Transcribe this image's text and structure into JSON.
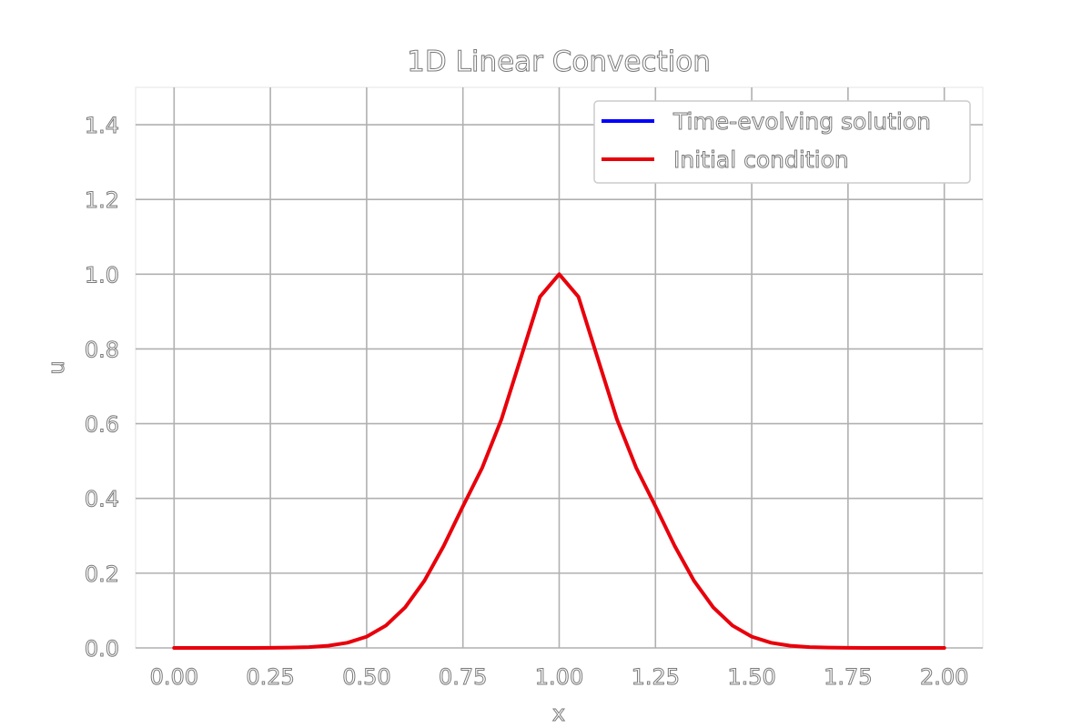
{
  "chart_data": {
    "type": "line",
    "title": "1D Linear Convection",
    "xlabel": "x",
    "ylabel": "u",
    "xlim": [
      -0.1,
      2.1
    ],
    "ylim": [
      0.0,
      1.5
    ],
    "xticks": [
      "0.00",
      "0.25",
      "0.50",
      "0.75",
      "1.00",
      "1.25",
      "1.50",
      "1.75",
      "2.00"
    ],
    "yticks": [
      "0.0",
      "0.2",
      "0.4",
      "0.6",
      "0.8",
      "1.0",
      "1.2",
      "1.4"
    ],
    "grid": true,
    "legend_position": "top-right",
    "series": [
      {
        "name": "Time-evolving solution",
        "color": "#0000ff",
        "x": [],
        "y": []
      },
      {
        "name": "Initial condition",
        "color": "#e8000b",
        "x": [
          0.0,
          0.05,
          0.1,
          0.15,
          0.2,
          0.25,
          0.3,
          0.35,
          0.4,
          0.45,
          0.5,
          0.55,
          0.6,
          0.65,
          0.7,
          0.75,
          0.8,
          0.85,
          0.9,
          0.95,
          1.0,
          1.05,
          1.1,
          1.15,
          1.2,
          1.25,
          1.3,
          1.35,
          1.4,
          1.45,
          1.5,
          1.55,
          1.6,
          1.65,
          1.7,
          1.75,
          1.8,
          1.85,
          1.9,
          1.95,
          2.0
        ],
        "y": [
          0.0,
          0.0,
          0.0,
          0.0,
          0.0001,
          0.0003,
          0.0008,
          0.0022,
          0.0058,
          0.0139,
          0.0302,
          0.0598,
          0.1084,
          0.1797,
          0.2727,
          0.3789,
          0.4819,
          0.6115,
          0.7749,
          0.9394,
          1.0,
          0.9394,
          0.7749,
          0.6115,
          0.4819,
          0.3789,
          0.2727,
          0.1797,
          0.1084,
          0.0598,
          0.0302,
          0.0139,
          0.0058,
          0.0022,
          0.0008,
          0.0003,
          0.0001,
          0.0,
          0.0,
          0.0,
          0.0
        ]
      }
    ]
  }
}
